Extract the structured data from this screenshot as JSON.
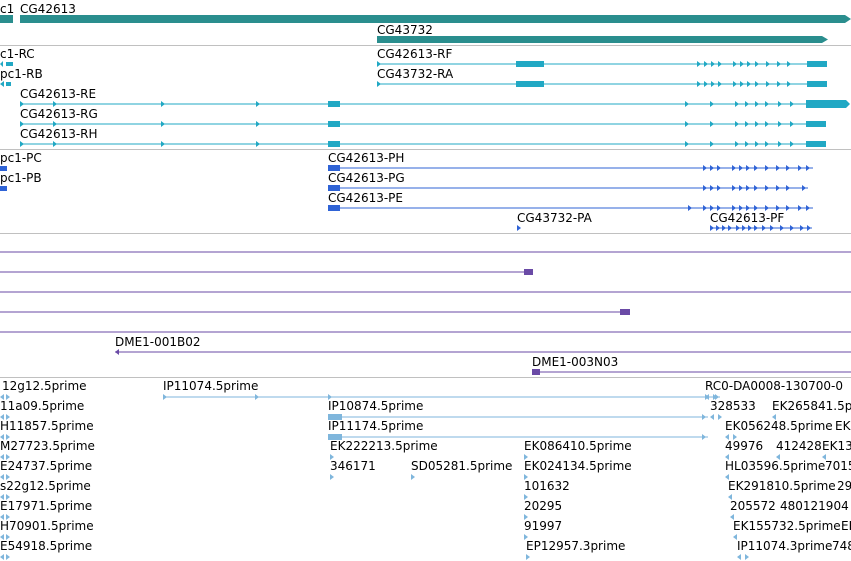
{
  "colors": {
    "gene": "#2a8e8e",
    "mrna_cyan": "#21a8c4",
    "mrna_blue": "#2f63d6",
    "cdna": "#6a4aa6",
    "est": "#7fb6dc",
    "separator": "#c0c0c0"
  },
  "tracks": {
    "genes": {
      "label_left_partial": "c1",
      "items": [
        {
          "name": "CG42613"
        },
        {
          "name": "CG43732"
        }
      ]
    },
    "transcripts_cyan": {
      "items": [
        {
          "name": "c1-RC"
        },
        {
          "name": "CG42613-RF"
        },
        {
          "name": "pc1-RB"
        },
        {
          "name": "CG43732-RA"
        },
        {
          "name": "CG42613-RE"
        },
        {
          "name": "CG42613-RG"
        },
        {
          "name": "CG42613-RH"
        }
      ]
    },
    "transcripts_blue": {
      "items": [
        {
          "name": "pc1-PC"
        },
        {
          "name": "CG42613-PH"
        },
        {
          "name": "pc1-PB"
        },
        {
          "name": "CG42613-PG"
        },
        {
          "name": "CG42613-PE"
        },
        {
          "name": "CG43732-PA"
        },
        {
          "name": "CG42613-PF"
        }
      ]
    },
    "cdna": {
      "items": [
        {
          "name": "DME1-001B02"
        },
        {
          "name": "DME1-003N03"
        }
      ]
    },
    "ests": {
      "items": [
        {
          "name": "12g12.5prime"
        },
        {
          "name": "IP11074.5prime"
        },
        {
          "name": "RC0-DA0008-130700-0"
        },
        {
          "name": "11a09.5prime"
        },
        {
          "name": "IP10874.5prime"
        },
        {
          "name": "328533"
        },
        {
          "name": "EK265841.5p"
        },
        {
          "name": "H11857.5prime"
        },
        {
          "name": "IP11174.5prime"
        },
        {
          "name": "EK056248.5prime"
        },
        {
          "name": "EK"
        },
        {
          "name": "M27723.5prime"
        },
        {
          "name": "EK222213.5prime"
        },
        {
          "name": "EK086410.5prime"
        },
        {
          "name": "49976"
        },
        {
          "name": "412428"
        },
        {
          "name": "EK13"
        },
        {
          "name": "E24737.5prime"
        },
        {
          "name": "346171"
        },
        {
          "name": "SD05281.5prime"
        },
        {
          "name": "EK024134.5prime"
        },
        {
          "name": "HL03596.5prime"
        },
        {
          "name": "7015"
        },
        {
          "name": "s22g12.5prime"
        },
        {
          "name": "101632"
        },
        {
          "name": "EK291810.5prime"
        },
        {
          "name": "29"
        },
        {
          "name": "E17971.5prime"
        },
        {
          "name": "20295"
        },
        {
          "name": "205572"
        },
        {
          "name": "480121904"
        },
        {
          "name": "H70901.5prime"
        },
        {
          "name": "91997"
        },
        {
          "name": "EK155732.5prime"
        },
        {
          "name": "EK"
        },
        {
          "name": "E54918.5prime"
        },
        {
          "name": "EP12957.3prime"
        },
        {
          "name": "IP11074.3prime"
        },
        {
          "name": "748"
        }
      ]
    }
  }
}
